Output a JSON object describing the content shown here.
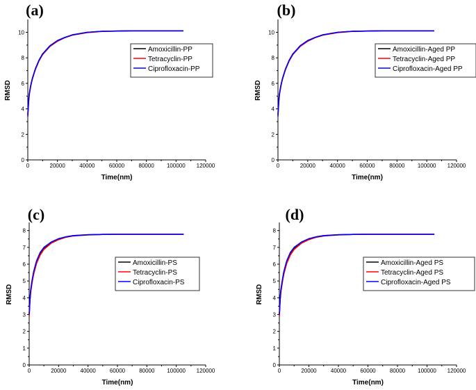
{
  "chart_data": [
    {
      "type": "line",
      "panel": "(a)",
      "xlabel": "Time(nm)",
      "ylabel": "RMSD",
      "xlim": [
        0,
        120000
      ],
      "ylim": [
        0,
        10.9
      ],
      "xticks": [
        0,
        20000,
        40000,
        60000,
        80000,
        100000,
        120000
      ],
      "yticks": [
        0,
        2,
        4,
        6,
        8,
        10
      ],
      "legend_position": "right-middle",
      "series": [
        {
          "name": "Amoxicillin-PP",
          "color": "#000000",
          "x": [
            0,
            500,
            1000,
            2000,
            3000,
            5000,
            7500,
            10000,
            15000,
            20000,
            25000,
            30000,
            40000,
            50000,
            60000,
            70000,
            80000,
            90000,
            100000,
            105000
          ],
          "y": [
            3.6,
            4.6,
            5.2,
            5.85,
            6.35,
            7.1,
            7.8,
            8.3,
            8.95,
            9.35,
            9.6,
            9.8,
            10.0,
            10.08,
            10.1,
            10.12,
            10.12,
            10.12,
            10.12,
            10.12
          ]
        },
        {
          "name": "Tetracyclin-PP",
          "color": "#ff0000",
          "x": [
            0,
            500,
            1000,
            2000,
            3000,
            5000,
            7500,
            10000,
            15000,
            20000,
            25000,
            30000,
            40000,
            50000,
            60000,
            70000,
            80000,
            90000,
            100000,
            105000
          ],
          "y": [
            3.5,
            4.5,
            5.1,
            5.8,
            6.3,
            7.05,
            7.75,
            8.25,
            8.9,
            9.3,
            9.58,
            9.78,
            9.98,
            10.07,
            10.1,
            10.12,
            10.12,
            10.12,
            10.12,
            10.12
          ]
        },
        {
          "name": "Ciprofloxacin-PP",
          "color": "#0000ff",
          "x": [
            0,
            500,
            1000,
            2000,
            3000,
            5000,
            7500,
            10000,
            15000,
            20000,
            25000,
            30000,
            40000,
            50000,
            60000,
            70000,
            80000,
            90000,
            100000,
            105000
          ],
          "y": [
            3.4,
            4.5,
            5.15,
            5.85,
            6.35,
            7.1,
            7.8,
            8.3,
            8.95,
            9.35,
            9.6,
            9.8,
            10.0,
            10.08,
            10.1,
            10.12,
            10.12,
            10.12,
            10.12,
            10.12
          ]
        }
      ]
    },
    {
      "type": "line",
      "panel": "(b)",
      "xlabel": "Time(nm)",
      "ylabel": "RMSD",
      "xlim": [
        0,
        120000
      ],
      "ylim": [
        0,
        10.9
      ],
      "xticks": [
        0,
        20000,
        40000,
        60000,
        80000,
        100000,
        120000
      ],
      "yticks": [
        0,
        2,
        4,
        6,
        8,
        10
      ],
      "legend_position": "right-middle",
      "series": [
        {
          "name": "Amoxicillin-Aged PP",
          "color": "#000000",
          "x": [
            0,
            500,
            1000,
            2000,
            3000,
            5000,
            7500,
            10000,
            15000,
            20000,
            25000,
            30000,
            40000,
            50000,
            60000,
            70000,
            80000,
            90000,
            100000,
            105000
          ],
          "y": [
            3.6,
            4.6,
            5.2,
            5.85,
            6.35,
            7.1,
            7.8,
            8.3,
            8.95,
            9.35,
            9.6,
            9.8,
            10.0,
            10.08,
            10.1,
            10.12,
            10.12,
            10.12,
            10.12,
            10.12
          ]
        },
        {
          "name": "Tetracyclin-Aged PP",
          "color": "#ff0000",
          "x": [
            0,
            500,
            1000,
            2000,
            3000,
            5000,
            7500,
            10000,
            15000,
            20000,
            25000,
            30000,
            40000,
            50000,
            60000,
            70000,
            80000,
            90000,
            100000,
            105000
          ],
          "y": [
            3.5,
            4.5,
            5.1,
            5.8,
            6.3,
            7.05,
            7.75,
            8.25,
            8.9,
            9.3,
            9.58,
            9.78,
            9.98,
            10.07,
            10.1,
            10.12,
            10.12,
            10.12,
            10.12,
            10.12
          ]
        },
        {
          "name": "Ciprofloxacin-Aged PP",
          "color": "#0000ff",
          "x": [
            0,
            500,
            1000,
            2000,
            3000,
            5000,
            7500,
            10000,
            15000,
            20000,
            25000,
            30000,
            40000,
            50000,
            60000,
            70000,
            80000,
            90000,
            100000,
            105000
          ],
          "y": [
            3.4,
            4.5,
            5.15,
            5.85,
            6.35,
            7.1,
            7.8,
            8.3,
            8.95,
            9.35,
            9.6,
            9.8,
            10.0,
            10.08,
            10.1,
            10.12,
            10.12,
            10.12,
            10.12,
            10.12
          ]
        }
      ]
    },
    {
      "type": "line",
      "panel": "(c)",
      "xlabel": "Time(nm)",
      "ylabel": "RMSD",
      "xlim": [
        0,
        120000
      ],
      "ylim": [
        0,
        8.4
      ],
      "xticks": [
        0,
        20000,
        40000,
        60000,
        80000,
        100000,
        120000
      ],
      "yticks": [
        0,
        1,
        2,
        3,
        4,
        5,
        6,
        7,
        8
      ],
      "legend_position": "right-middle",
      "series": [
        {
          "name": "Amoxicillin-PS",
          "color": "#000000",
          "x": [
            0,
            500,
            1000,
            2000,
            3000,
            5000,
            7500,
            10000,
            15000,
            20000,
            25000,
            30000,
            40000,
            50000,
            60000,
            70000,
            80000,
            90000,
            100000,
            105000
          ],
          "y": [
            3.0,
            3.9,
            4.4,
            5.0,
            5.5,
            6.15,
            6.65,
            6.95,
            7.3,
            7.5,
            7.62,
            7.7,
            7.75,
            7.77,
            7.78,
            7.78,
            7.78,
            7.78,
            7.78,
            7.78
          ]
        },
        {
          "name": "Tetracyclin-PS",
          "color": "#ff0000",
          "x": [
            0,
            500,
            1000,
            2000,
            3000,
            5000,
            7500,
            10000,
            15000,
            20000,
            25000,
            30000,
            40000,
            50000,
            60000,
            70000,
            80000,
            90000,
            100000,
            105000
          ],
          "y": [
            2.9,
            3.8,
            4.3,
            4.9,
            5.4,
            6.05,
            6.55,
            6.88,
            7.25,
            7.46,
            7.6,
            7.68,
            7.74,
            7.77,
            7.78,
            7.78,
            7.78,
            7.78,
            7.78,
            7.78
          ]
        },
        {
          "name": "Ciprofloxacin-PS",
          "color": "#0000ff",
          "x": [
            0,
            500,
            1000,
            2000,
            3000,
            5000,
            7500,
            10000,
            15000,
            20000,
            25000,
            30000,
            40000,
            50000,
            60000,
            70000,
            80000,
            90000,
            100000,
            105000
          ],
          "y": [
            3.0,
            3.9,
            4.45,
            5.05,
            5.55,
            6.2,
            6.7,
            7.0,
            7.32,
            7.52,
            7.63,
            7.7,
            7.75,
            7.77,
            7.78,
            7.78,
            7.78,
            7.78,
            7.78,
            7.78
          ]
        }
      ]
    },
    {
      "type": "line",
      "panel": "(d)",
      "xlabel": "Time(nm)",
      "ylabel": "RMSD",
      "xlim": [
        0,
        120000
      ],
      "ylim": [
        0,
        8.4
      ],
      "xticks": [
        0,
        20000,
        40000,
        60000,
        80000,
        100000,
        120000
      ],
      "yticks": [
        0,
        1,
        2,
        3,
        4,
        5,
        6,
        7,
        8
      ],
      "legend_position": "right-middle",
      "series": [
        {
          "name": "Amoxicillin-Aged PS",
          "color": "#000000",
          "x": [
            0,
            500,
            1000,
            2000,
            3000,
            5000,
            7500,
            10000,
            15000,
            20000,
            25000,
            30000,
            40000,
            50000,
            60000,
            70000,
            80000,
            90000,
            100000,
            105000
          ],
          "y": [
            3.0,
            3.9,
            4.4,
            5.0,
            5.5,
            6.15,
            6.65,
            6.95,
            7.3,
            7.5,
            7.62,
            7.7,
            7.75,
            7.77,
            7.78,
            7.78,
            7.78,
            7.78,
            7.78,
            7.78
          ]
        },
        {
          "name": "Tetracyclin-Aged PS",
          "color": "#ff0000",
          "x": [
            0,
            500,
            1000,
            2000,
            3000,
            5000,
            7500,
            10000,
            15000,
            20000,
            25000,
            30000,
            40000,
            50000,
            60000,
            70000,
            80000,
            90000,
            100000,
            105000
          ],
          "y": [
            2.9,
            3.8,
            4.3,
            4.9,
            5.4,
            6.05,
            6.55,
            6.88,
            7.25,
            7.46,
            7.6,
            7.68,
            7.74,
            7.77,
            7.78,
            7.78,
            7.78,
            7.78,
            7.78,
            7.78
          ]
        },
        {
          "name": "Ciprofloxacin-Aged PS",
          "color": "#0000ff",
          "x": [
            0,
            500,
            1000,
            2000,
            3000,
            5000,
            7500,
            10000,
            15000,
            20000,
            25000,
            30000,
            40000,
            50000,
            60000,
            70000,
            80000,
            90000,
            100000,
            105000
          ],
          "y": [
            3.0,
            3.9,
            4.45,
            5.05,
            5.55,
            6.2,
            6.7,
            7.0,
            7.32,
            7.52,
            7.63,
            7.7,
            7.75,
            7.77,
            7.78,
            7.78,
            7.78,
            7.78,
            7.78,
            7.78
          ]
        }
      ]
    }
  ]
}
